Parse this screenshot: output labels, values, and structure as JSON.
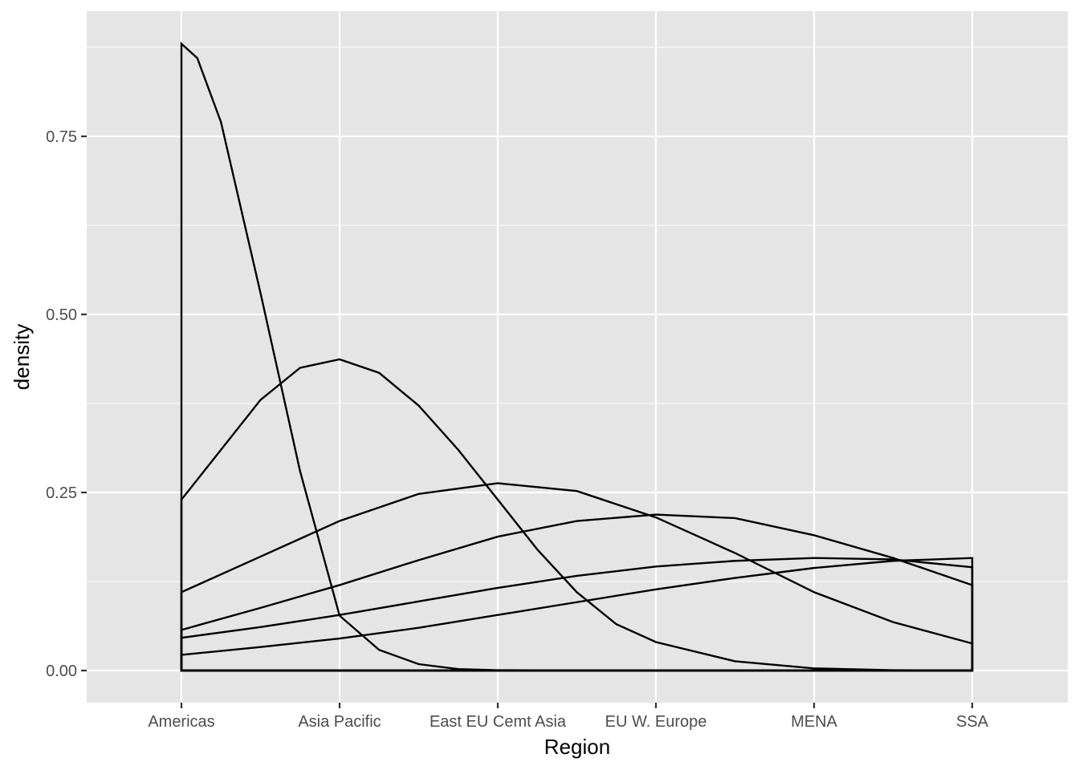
{
  "chart_data": {
    "type": "area",
    "title": "",
    "xlabel": "Region",
    "ylabel": "density",
    "categories": [
      "Americas",
      "Asia Pacific",
      "East EU Cemt Asia",
      "EU W. Europe",
      "MENA",
      "SSA"
    ],
    "x_range": [
      1,
      6
    ],
    "ylim": [
      -0.042,
      0.925
    ],
    "y_ticks": [
      0,
      0.25,
      0.5,
      0.75
    ],
    "y_tick_labels": [
      "0.00",
      "0.25",
      "0.50",
      "0.75"
    ],
    "grid": true,
    "legend": "none",
    "colors": {
      "panel": "#e5e5e5",
      "grid": "#ffffff",
      "line": "#000000",
      "text": "#4d4d4d"
    },
    "series": [
      {
        "x": [
          1,
          1.1,
          1.25,
          1.5,
          1.75,
          2,
          2.25,
          2.5,
          2.75,
          3,
          3.5,
          4,
          5,
          6
        ],
        "values": [
          0.88,
          0.86,
          0.77,
          0.53,
          0.28,
          0.077,
          0.029,
          0.009,
          0.002,
          0.0005,
          0.0,
          0.0,
          0.0,
          0.0
        ]
      },
      {
        "x": [
          1,
          1.25,
          1.5,
          1.75,
          2,
          2.25,
          2.5,
          2.75,
          3,
          3.25,
          3.5,
          3.75,
          4,
          4.5,
          5,
          5.5,
          6
        ],
        "values": [
          0.24,
          0.31,
          0.38,
          0.425,
          0.437,
          0.418,
          0.372,
          0.31,
          0.24,
          0.17,
          0.11,
          0.065,
          0.04,
          0.013,
          0.003,
          0.0005,
          0.0
        ]
      },
      {
        "x": [
          1,
          1.5,
          2,
          2.5,
          3,
          3.5,
          4,
          4.5,
          5,
          5.5,
          6
        ],
        "values": [
          0.11,
          0.16,
          0.21,
          0.248,
          0.263,
          0.252,
          0.215,
          0.165,
          0.11,
          0.068,
          0.038
        ]
      },
      {
        "x": [
          1,
          1.5,
          2,
          2.5,
          3,
          3.5,
          4,
          4.5,
          5,
          5.5,
          6
        ],
        "values": [
          0.057,
          0.088,
          0.12,
          0.155,
          0.188,
          0.21,
          0.219,
          0.214,
          0.19,
          0.158,
          0.12
        ]
      },
      {
        "x": [
          1,
          1.5,
          2,
          2.5,
          3,
          3.5,
          4,
          4.5,
          5,
          5.5,
          6
        ],
        "values": [
          0.046,
          0.061,
          0.078,
          0.097,
          0.116,
          0.133,
          0.146,
          0.154,
          0.158,
          0.156,
          0.145
        ]
      },
      {
        "x": [
          1,
          1.5,
          2,
          2.5,
          3,
          3.5,
          4,
          4.5,
          5,
          5.5,
          6
        ],
        "values": [
          0.022,
          0.033,
          0.045,
          0.06,
          0.078,
          0.096,
          0.114,
          0.13,
          0.144,
          0.154,
          0.158
        ]
      }
    ]
  }
}
